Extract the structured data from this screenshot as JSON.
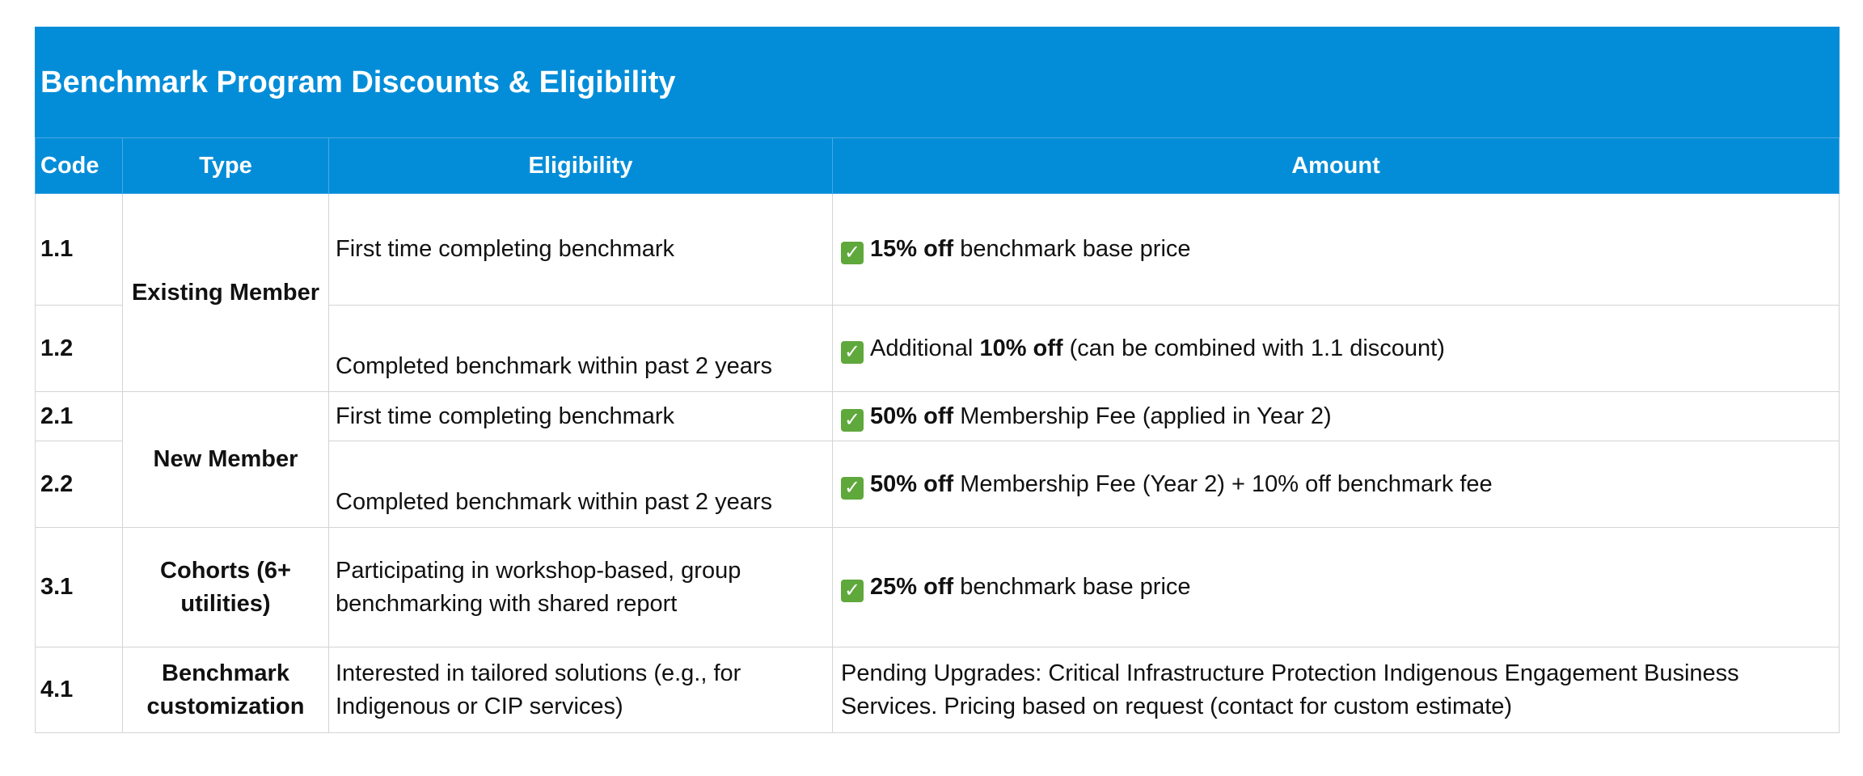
{
  "title": "Benchmark Program Discounts & Eligibility",
  "columns": {
    "code": "Code",
    "type": "Type",
    "eligibility": "Eligibility",
    "amount": "Amount"
  },
  "check_icon": "green-checkmark-icon",
  "colors": {
    "header_bg": "#038dd8",
    "header_text": "#ffffff",
    "check_bg": "#5fa83c"
  },
  "groups": [
    {
      "type": "Existing Member"
    },
    {
      "type": "New Member"
    },
    {
      "type": "Cohorts (6+ utilities)"
    },
    {
      "type": "Benchmark customization"
    }
  ],
  "rows": [
    {
      "code": "1.1",
      "eligibility": "First time completing benchmark",
      "amount": {
        "pre": "",
        "bold": "15% off",
        "post": " benchmark base price"
      }
    },
    {
      "code": "1.2",
      "eligibility": "Completed benchmark within past 2 years",
      "amount": {
        "pre": "Additional ",
        "bold": "10% off",
        "post": " (can be combined with 1.1 discount)"
      }
    },
    {
      "code": "2.1",
      "eligibility": "First time completing benchmark",
      "amount": {
        "pre": "",
        "bold": "50% off",
        "post": " Membership Fee (applied in Year 2)"
      }
    },
    {
      "code": "2.2",
      "eligibility": "Completed benchmark within past 2 years",
      "amount": {
        "pre": "",
        "bold": "50% off",
        "post": " Membership Fee (Year 2) + 10% off benchmark fee"
      }
    },
    {
      "code": "3.1",
      "eligibility": "Participating in workshop-based, group benchmarking with shared report",
      "amount": {
        "pre": "",
        "bold": "25% off",
        "post": " benchmark base price"
      }
    },
    {
      "code": "4.1",
      "eligibility": "Interested in tailored solutions (e.g., for Indigenous or CIP services)",
      "amount_text": "Pending Upgrades: Critical Infrastructure Protection Indigenous Engagement Business Services. Pricing based on request (contact for custom estimate)"
    }
  ]
}
